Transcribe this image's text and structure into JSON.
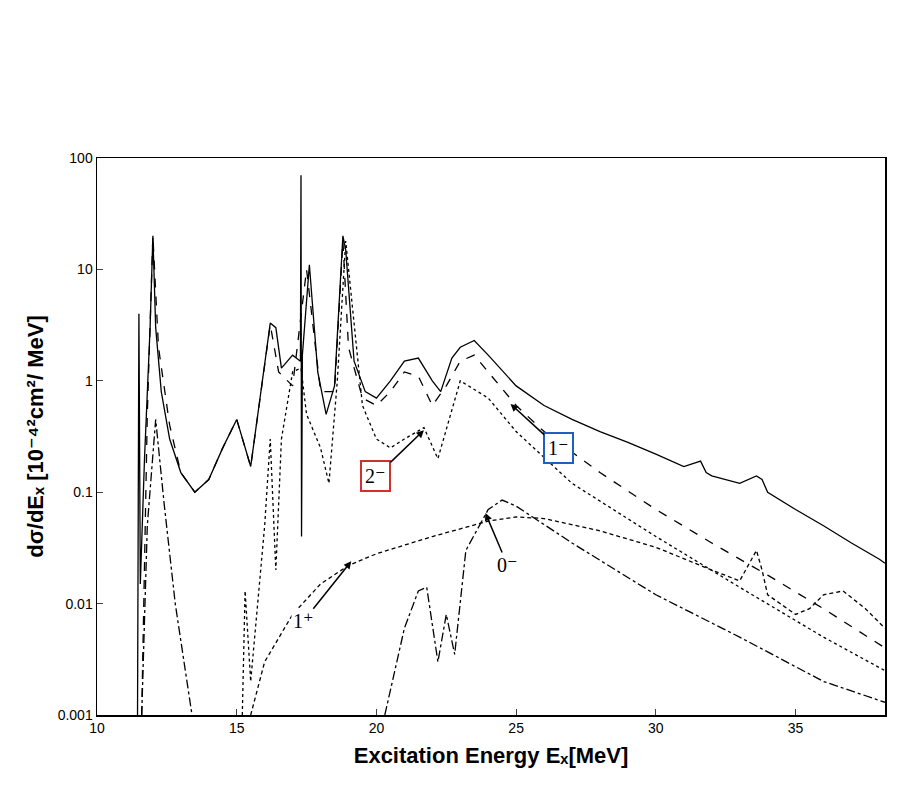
{
  "chart_data": {
    "type": "line",
    "x_label": "Excitation Energy Eₓ[MeV]",
    "y_label": "dσ/dEₓ [10⁻⁴²cm²/ MeV]",
    "log": "y",
    "grid": false,
    "xlim": [
      10,
      38.2
    ],
    "xticks": [
      10,
      15,
      20,
      25,
      30,
      35
    ],
    "ylim": [
      0.001,
      100
    ],
    "yticks": [
      0.001,
      0.01,
      0.1,
      1,
      10,
      100
    ],
    "series": [
      {
        "color": "#000000",
        "line_style": "solid",
        "x": [
          11.45,
          11.5,
          11.55,
          11.7,
          11.9,
          12.0,
          12.1,
          12.3,
          12.6,
          13,
          13.5,
          14,
          14.5,
          15,
          15.5,
          16,
          16.2,
          16.4,
          16.6,
          17,
          17.28,
          17.3,
          17.32,
          17.35,
          17.6,
          17.9,
          18.2,
          18.5,
          18.8,
          18.9,
          19.2,
          19.6,
          20,
          20.5,
          21,
          21.5,
          22,
          22.3,
          22.7,
          23,
          23.5,
          24,
          25,
          26,
          27,
          28,
          29,
          30,
          31,
          31.6,
          31.8,
          32,
          33,
          33.6,
          33.8,
          34,
          35,
          36,
          37,
          38,
          38.2
        ],
        "values": [
          0.001,
          4,
          0.015,
          0.2,
          3,
          20,
          3,
          0.8,
          0.3,
          0.15,
          0.1,
          0.13,
          0.25,
          0.45,
          0.17,
          1.5,
          3.3,
          3.0,
          1.3,
          1.7,
          1.5,
          70,
          0.04,
          1.7,
          11,
          1.2,
          0.5,
          0.9,
          20,
          15,
          1.5,
          0.8,
          0.7,
          1.0,
          1.5,
          1.6,
          1.0,
          0.8,
          1.6,
          2.0,
          2.3,
          1.7,
          0.9,
          0.6,
          0.45,
          0.35,
          0.28,
          0.22,
          0.17,
          0.19,
          0.15,
          0.14,
          0.12,
          0.14,
          0.13,
          0.1,
          0.07,
          0.05,
          0.035,
          0.025,
          0.023
        ]
      },
      {
        "name": "1⁻",
        "color": "#000000",
        "line_style": "dashed",
        "x": [
          11.6,
          11.8,
          12,
          12.2,
          12.6,
          13,
          13.5,
          14,
          14.5,
          15,
          15.5,
          16,
          16.2,
          16.5,
          17,
          17.5,
          18,
          18.5,
          18.8,
          19,
          19.5,
          20,
          20.5,
          21,
          21.5,
          22,
          22.5,
          23,
          23.5,
          24,
          25,
          26,
          28,
          30,
          32,
          34,
          36,
          38.2
        ],
        "values": [
          0.001,
          0.5,
          20,
          2,
          0.4,
          0.15,
          0.1,
          0.13,
          0.25,
          0.45,
          0.17,
          1.5,
          3.2,
          1.2,
          0.9,
          10,
          0.8,
          0.8,
          18,
          2,
          0.7,
          0.6,
          0.8,
          1.2,
          1.1,
          0.6,
          0.9,
          1.5,
          1.7,
          1.2,
          0.6,
          0.35,
          0.15,
          0.07,
          0.035,
          0.018,
          0.009,
          0.004
        ]
      },
      {
        "name": "2⁻",
        "color": "#000000",
        "line_style": "dotted",
        "x": [
          15.2,
          15.3,
          15.5,
          16,
          16.2,
          16.4,
          16.6,
          17,
          17.3,
          17.5,
          18,
          18.3,
          18.6,
          18.9,
          19.5,
          20,
          20.5,
          21,
          21.7,
          22.2,
          23,
          24,
          25,
          27,
          30,
          33,
          36,
          38.2
        ],
        "values": [
          0.001,
          0.013,
          0.002,
          0.05,
          0.3,
          0.02,
          0.3,
          1.2,
          1.3,
          0.5,
          0.25,
          0.12,
          1.0,
          18,
          0.6,
          0.3,
          0.25,
          0.3,
          0.38,
          0.2,
          1.0,
          0.7,
          0.35,
          0.12,
          0.04,
          0.014,
          0.005,
          0.0025
        ]
      },
      {
        "name": "1⁺",
        "color": "#000000",
        "line_style": "shortdash",
        "x": [
          15.5,
          16,
          17,
          18,
          19,
          20,
          22,
          24,
          25,
          26,
          28,
          30,
          32,
          33,
          33.6,
          33.8,
          34,
          35,
          35.5,
          36,
          36.7,
          37.5,
          38.2
        ],
        "values": [
          0.001,
          0.003,
          0.008,
          0.015,
          0.022,
          0.028,
          0.04,
          0.055,
          0.06,
          0.058,
          0.045,
          0.032,
          0.02,
          0.016,
          0.03,
          0.02,
          0.012,
          0.008,
          0.009,
          0.012,
          0.013,
          0.009,
          0.006
        ]
      },
      {
        "name": "0⁻",
        "color": "#000000",
        "line_style": "dashdot",
        "x": [
          11.6,
          11.8,
          12.1,
          12.4,
          12.8,
          13.4,
          16,
          20.3,
          21,
          21.5,
          21.8,
          22.2,
          22.5,
          22.8,
          23.2,
          24,
          24.5,
          25,
          27,
          30,
          33,
          36,
          38.2
        ],
        "values": [
          0.001,
          0.05,
          0.45,
          0.08,
          0.01,
          0.001,
          null,
          0.001,
          0.006,
          0.013,
          0.014,
          0.003,
          0.008,
          0.0035,
          0.03,
          0.07,
          0.085,
          0.075,
          0.035,
          0.012,
          0.005,
          0.002,
          0.0013
        ]
      }
    ],
    "annotations": [
      {
        "text": "1⁻",
        "x": 24.8,
        "y": 0.62,
        "color": "#1f5fbf"
      },
      {
        "text": "2⁻",
        "x": 21.7,
        "y": 0.36,
        "color": "#d0312d"
      },
      {
        "text": "1⁺",
        "x": 19.1,
        "y": 0.024
      },
      {
        "text": "0⁻",
        "x": 23.9,
        "y": 0.065
      }
    ]
  }
}
